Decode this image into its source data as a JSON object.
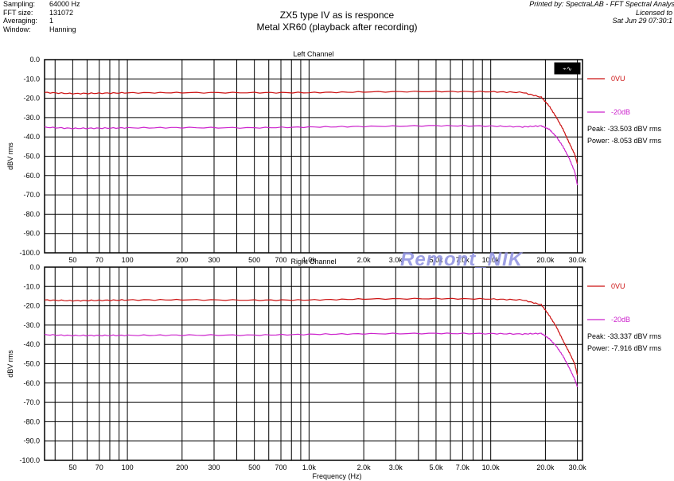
{
  "header": {
    "meta": [
      {
        "key": "Sampling:",
        "value": "64000 Hz"
      },
      {
        "key": "FFT size:",
        "value": "131072"
      },
      {
        "key": "Averaging:",
        "value": "1"
      },
      {
        "key": "Window:",
        "value": "Hanning"
      }
    ],
    "title_line1": "ZX5 type IV as is responce",
    "title_line2": "Metal XR60 (playback after recording)",
    "printed_line1": "Printed by: SpectraLAB - FFT Spectral Analysis S",
    "printed_line2": "Licensed to",
    "printed_line3": "Sat Jun 29 07:30:1"
  },
  "watermark": "Remont_NIK",
  "colors": {
    "series_0vu": "#cc1111",
    "series_m20db": "#cc22cc",
    "grid": "#000000"
  },
  "chart_data": [
    {
      "type": "line",
      "title": "Left Channel",
      "xlabel": "Frequency (Hz)",
      "ylabel": "dBV rms",
      "x_scale": "log",
      "xlim": [
        35,
        32000
      ],
      "ylim": [
        -100,
        0
      ],
      "grid": true,
      "legend_position": "right",
      "x_ticks": [
        "50",
        "70",
        "100",
        "200",
        "300",
        "500",
        "700",
        "1.0k",
        "2.0k",
        "3.0k",
        "5.0k",
        "7.0k",
        "10.0k",
        "20.0k",
        "30.0k"
      ],
      "y_ticks": [
        "0.0",
        "-10.0",
        "-20.0",
        "-30.0",
        "-40.0",
        "-50.0",
        "-60.0",
        "-70.0",
        "-80.0",
        "-90.0",
        "-100.0"
      ],
      "series": [
        {
          "name": "0VU",
          "x": [
            35,
            50,
            70,
            100,
            200,
            500,
            1000,
            2000,
            5000,
            10000,
            15000,
            19000,
            21000,
            23000,
            25000,
            27000,
            29000,
            30000
          ],
          "values": [
            -17,
            -17.6,
            -17.4,
            -17.2,
            -17.1,
            -17.1,
            -17.1,
            -16.7,
            -16.5,
            -16.6,
            -17.0,
            -19.5,
            -24,
            -30,
            -36,
            -43,
            -49,
            -54
          ]
        },
        {
          "name": "-20dB",
          "x": [
            35,
            50,
            70,
            100,
            200,
            500,
            1000,
            2000,
            5000,
            10000,
            15000,
            19000,
            21000,
            23000,
            25000,
            27000,
            29000,
            30000
          ],
          "values": [
            -35,
            -35.6,
            -35.5,
            -35.3,
            -35.2,
            -35.3,
            -34.9,
            -34.6,
            -34.2,
            -34.4,
            -34.8,
            -34.3,
            -36,
            -40,
            -45,
            -51,
            -58,
            -65
          ]
        }
      ],
      "legend_labels": [
        "0VU",
        "-20dB"
      ],
      "readout_peak": "Peak: -33.503 dBV rms",
      "readout_power": "Power: -8.053 dBV rms"
    },
    {
      "type": "line",
      "title": "Right Channel",
      "xlabel": "Frequency (Hz)",
      "ylabel": "dBV rms",
      "x_scale": "log",
      "xlim": [
        35,
        32000
      ],
      "ylim": [
        -100,
        0
      ],
      "grid": true,
      "legend_position": "right",
      "x_ticks": [
        "50",
        "70",
        "100",
        "200",
        "300",
        "500",
        "700",
        "1.0k",
        "2.0k",
        "3.0k",
        "5.0k",
        "7.0k",
        "10.0k",
        "20.0k",
        "30.0k"
      ],
      "y_ticks": [
        "0.0",
        "-10.0",
        "-20.0",
        "-30.0",
        "-40.0",
        "-50.0",
        "-60.0",
        "-70.0",
        "-80.0",
        "-90.0",
        "-100.0"
      ],
      "series": [
        {
          "name": "0VU",
          "x": [
            35,
            50,
            70,
            100,
            200,
            500,
            1000,
            2000,
            5000,
            10000,
            15000,
            19000,
            21000,
            23000,
            25000,
            27000,
            29000,
            30000
          ],
          "values": [
            -17,
            -17.4,
            -17.2,
            -17,
            -16.9,
            -17.1,
            -17.0,
            -16.5,
            -16.3,
            -16.5,
            -17.0,
            -19.5,
            -25,
            -31,
            -38,
            -44,
            -50,
            -56
          ]
        },
        {
          "name": "-20dB",
          "x": [
            35,
            50,
            70,
            100,
            200,
            500,
            1000,
            2000,
            5000,
            10000,
            15000,
            19000,
            21000,
            23000,
            25000,
            27000,
            29000,
            30000
          ],
          "values": [
            -35,
            -35.4,
            -35.4,
            -35.3,
            -35.2,
            -35.2,
            -34.8,
            -34.5,
            -34.3,
            -34.4,
            -34.6,
            -34.3,
            -37,
            -41,
            -46,
            -52,
            -58,
            -62
          ]
        }
      ],
      "legend_labels": [
        "0VU",
        "-20dB"
      ],
      "readout_peak": "Peak: -33.337 dBV rms",
      "readout_power": "Power: -7.916 dBV rms"
    }
  ]
}
